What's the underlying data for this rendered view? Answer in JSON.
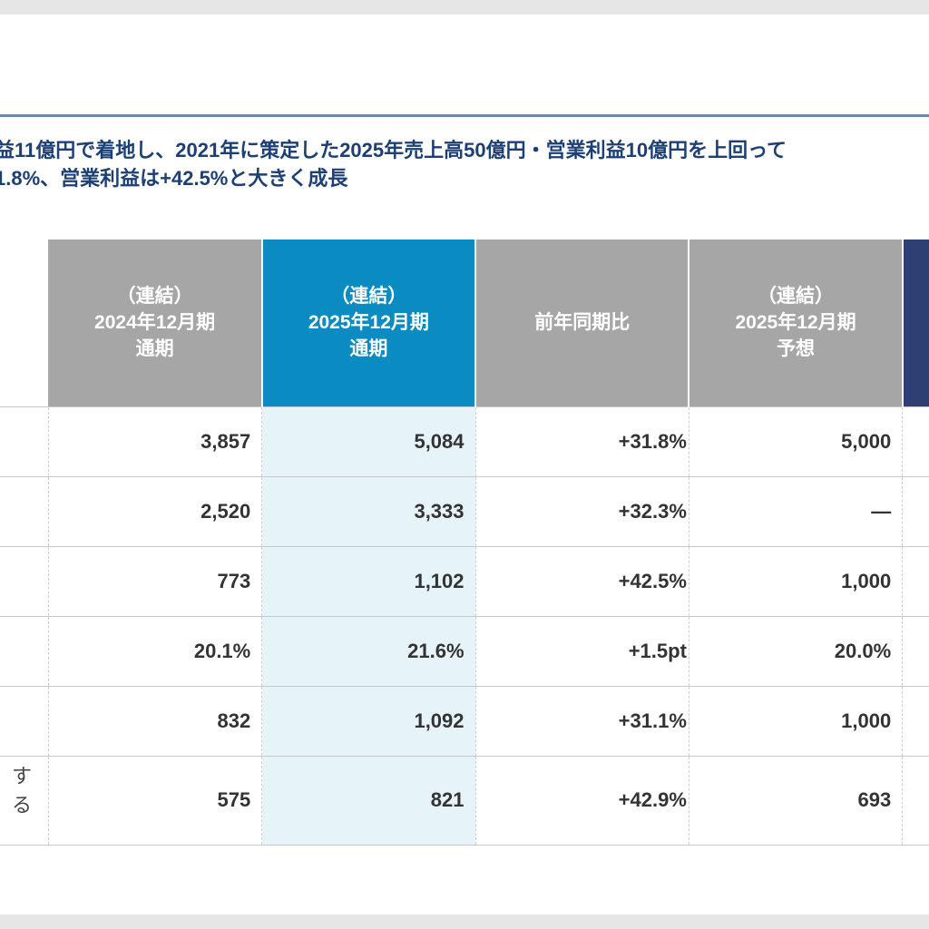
{
  "lead": {
    "line1": "益11億円で着地し、2021年に策定した2025年売上高50億円・営業利益10億円を上回って",
    "line2": "1.8%、営業利益は+42.5%と大きく成長"
  },
  "table": {
    "headers": [
      {
        "line1": "（連結）",
        "line2": "2024年12月期",
        "line3": "通期"
      },
      {
        "line1": "（連結）",
        "line2": "2025年12月期",
        "line3": "通期"
      },
      {
        "line1": "",
        "line2": "前年同期比",
        "line3": ""
      },
      {
        "line1": "（連結）",
        "line2": "2025年12月期",
        "line3": "予想"
      }
    ],
    "rows": [
      {
        "label": "",
        "fy2024": "3,857",
        "fy2025": "5,084",
        "yoy": "+31.8%",
        "forecast": "5,000"
      },
      {
        "label": "",
        "fy2024": "2,520",
        "fy2025": "3,333",
        "yoy": "+32.3%",
        "forecast": "—"
      },
      {
        "label": "",
        "fy2024": "773",
        "fy2025": "1,102",
        "yoy": "+42.5%",
        "forecast": "1,000"
      },
      {
        "label": "",
        "fy2024": "20.1%",
        "fy2025": "21.6%",
        "yoy": "+1.5pt",
        "forecast": "20.0%"
      },
      {
        "label": "",
        "fy2024": "832",
        "fy2025": "1,092",
        "yoy": "+31.1%",
        "forecast": "1,000"
      },
      {
        "label": "する",
        "fy2024": "575",
        "fy2025": "821",
        "yoy": "+42.9%",
        "forecast": "693"
      }
    ]
  },
  "colors": {
    "header_gray": "#a6a6a6",
    "header_highlight": "#0a8bc1",
    "column_highlight": "#e6f3f9",
    "lead_text": "#1c3f75",
    "rule": "#6f86ad"
  }
}
